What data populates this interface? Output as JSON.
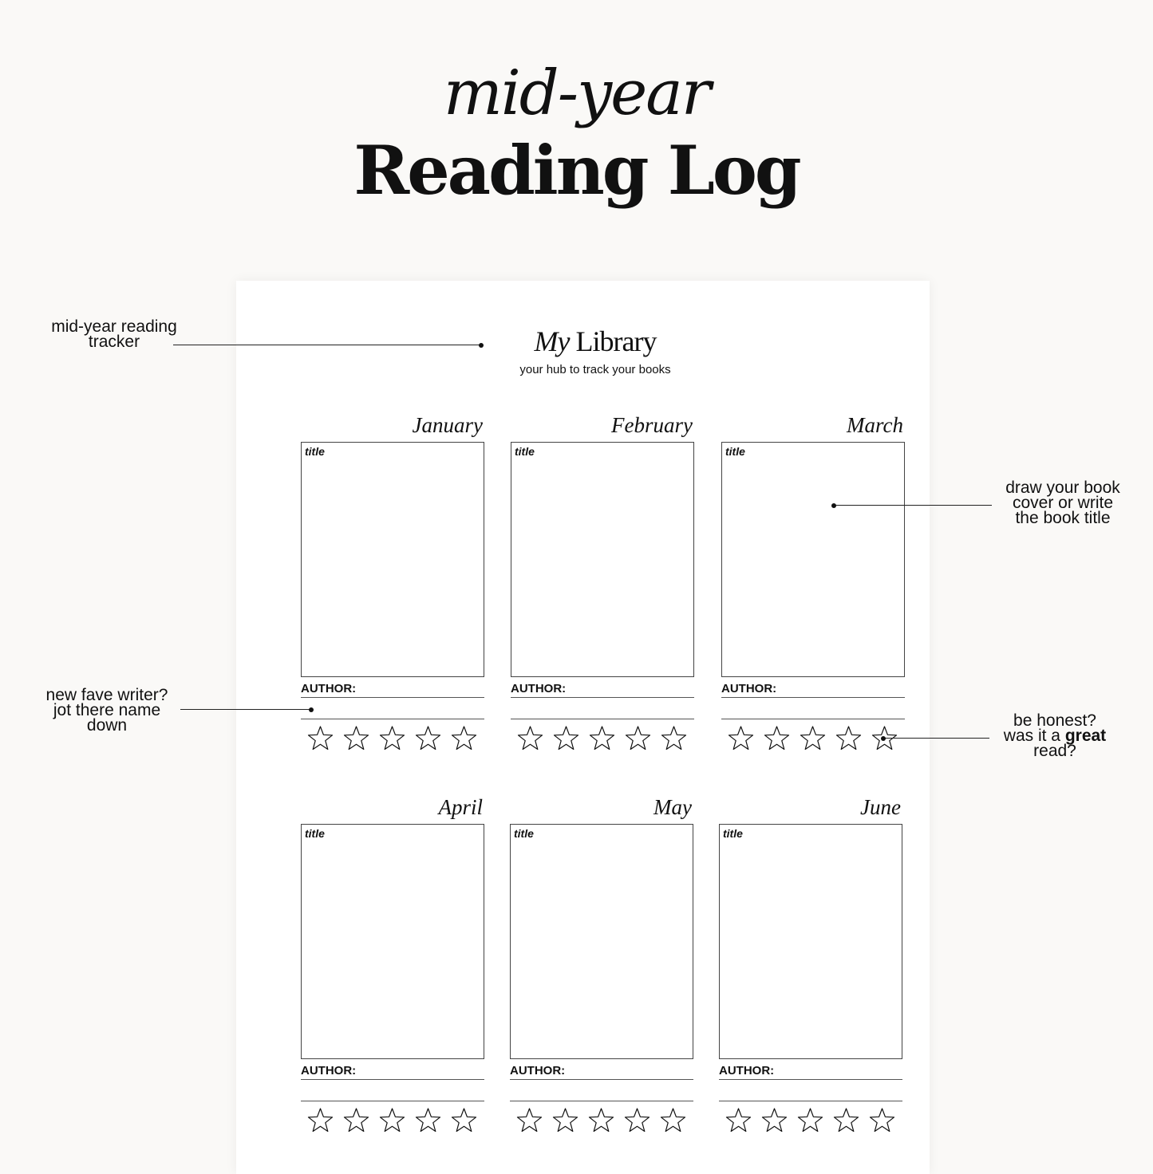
{
  "header": {
    "script_title": "mid-year",
    "main_title": "Reading Log"
  },
  "sheet": {
    "title_italic": "My",
    "title_rest": "Library",
    "subtitle": "your hub to track your books",
    "cards": [
      {
        "month": "January",
        "title_label": "title",
        "author_label": "AUTHOR:",
        "rating": 0
      },
      {
        "month": "February",
        "title_label": "title",
        "author_label": "AUTHOR:",
        "rating": 0
      },
      {
        "month": "March",
        "title_label": "title",
        "author_label": "AUTHOR:",
        "rating": 0
      },
      {
        "month": "April",
        "title_label": "title",
        "author_label": "AUTHOR:",
        "rating": 0
      },
      {
        "month": "May",
        "title_label": "title",
        "author_label": "AUTHOR:",
        "rating": 0
      },
      {
        "month": "June",
        "title_label": "title",
        "author_label": "AUTHOR:",
        "rating": 0
      }
    ],
    "max_stars": 5
  },
  "annotations": {
    "tracker": [
      "mid-year reading",
      "tracker"
    ],
    "cover": [
      "draw your book",
      "cover or write",
      "the book title"
    ],
    "writer": [
      "new fave writer?",
      "jot there name",
      "down"
    ],
    "rating_line1": "be honest?",
    "rating_line2_pre": "was it a ",
    "rating_line2_bold": "great",
    "rating_line3": "read?"
  }
}
